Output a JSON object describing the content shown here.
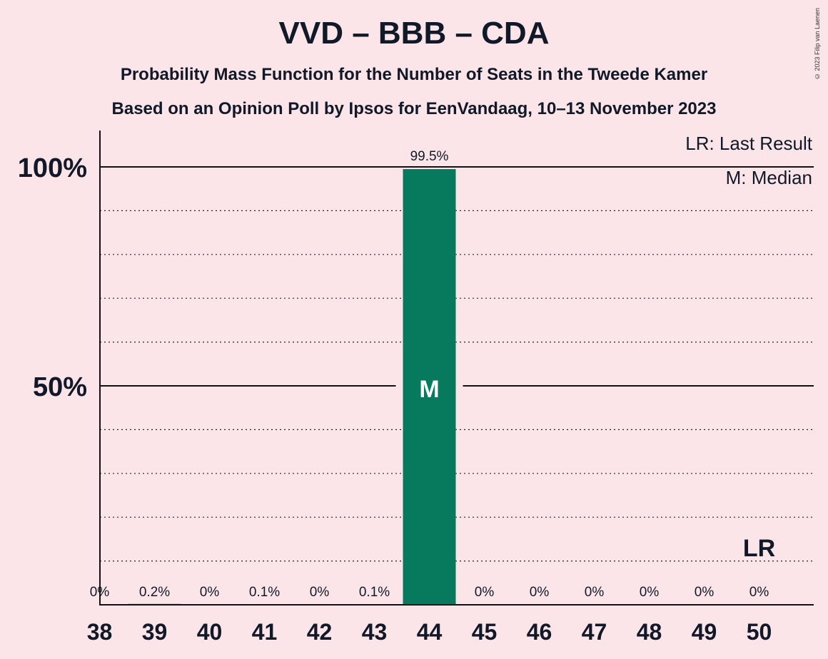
{
  "header": {
    "title": "VVD – BBB – CDA",
    "subtitle_line1": "Probability Mass Function for the Number of Seats in the Tweede Kamer",
    "subtitle_line2": "Based on an Opinion Poll by Ipsos for EenVandaag, 10–13 November 2023",
    "copyright": "© 2023 Filip van Laenen"
  },
  "legend": {
    "last_result": "LR: Last Result",
    "median": "M: Median"
  },
  "colors": {
    "background": "#fbe5e8",
    "bar": "#077a5e",
    "text": "#111827"
  },
  "chart_data": {
    "type": "bar",
    "categories": [
      "38",
      "39",
      "40",
      "41",
      "42",
      "43",
      "44",
      "45",
      "46",
      "47",
      "48",
      "49",
      "50"
    ],
    "values": [
      0,
      0.2,
      0,
      0.1,
      0,
      0.1,
      99.5,
      0,
      0,
      0,
      0,
      0,
      0
    ],
    "value_labels": [
      "0%",
      "0.2%",
      "0%",
      "0.1%",
      "0%",
      "0.1%",
      "99.5%",
      "0%",
      "0%",
      "0%",
      "0%",
      "0%",
      "0%"
    ],
    "ylim": [
      0,
      100
    ],
    "ytick_labels": [
      {
        "value": 50,
        "label": "50%"
      },
      {
        "value": 100,
        "label": "100%"
      }
    ],
    "minor_gridlines": [
      10,
      20,
      30,
      40,
      60,
      70,
      80,
      90
    ],
    "median_seat": "44",
    "median_marker": "M",
    "last_result_seat": "50",
    "last_result_marker": "LR",
    "legend_position": "top-right"
  }
}
